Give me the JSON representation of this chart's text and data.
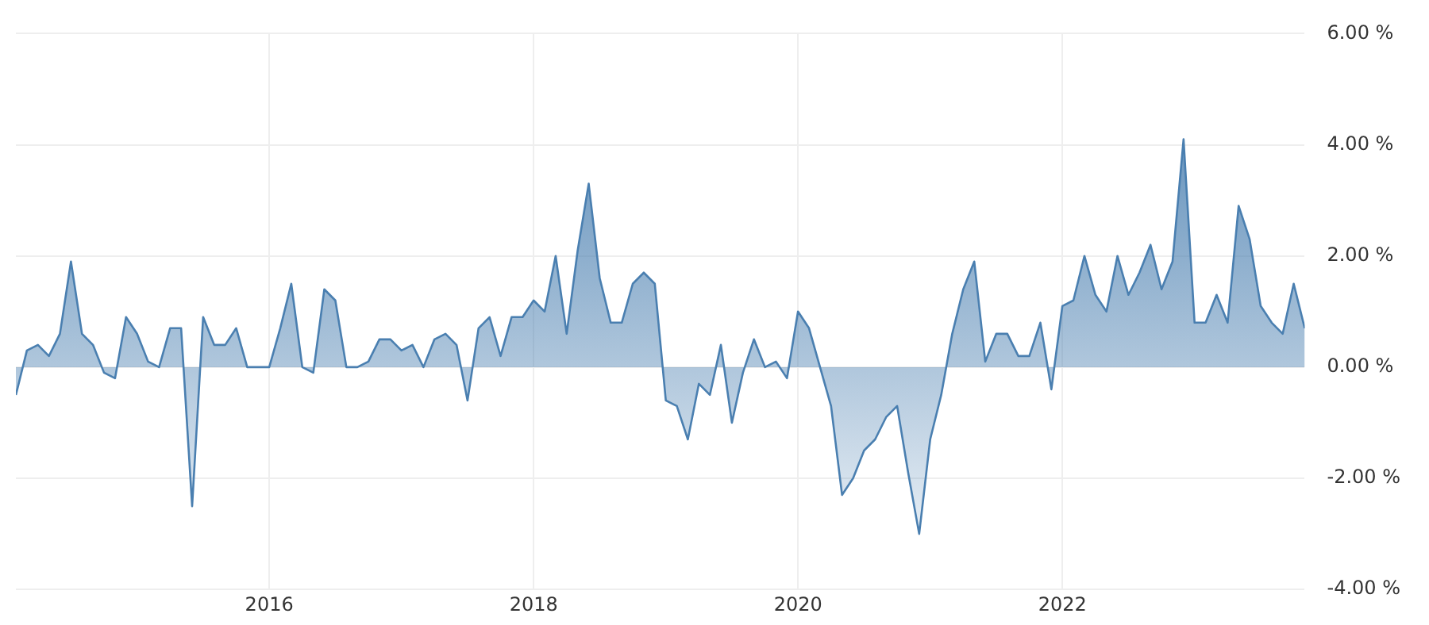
{
  "chart_data": {
    "type": "area",
    "x": [
      "2014-02",
      "2014-03",
      "2014-04",
      "2014-05",
      "2014-06",
      "2014-07",
      "2014-08",
      "2014-09",
      "2014-10",
      "2014-11",
      "2014-12",
      "2015-01",
      "2015-02",
      "2015-03",
      "2015-04",
      "2015-05",
      "2015-06",
      "2015-07",
      "2015-08",
      "2015-09",
      "2015-10",
      "2015-11",
      "2015-12",
      "2016-01",
      "2016-02",
      "2016-03",
      "2016-04",
      "2016-05",
      "2016-06",
      "2016-07",
      "2016-08",
      "2016-09",
      "2016-10",
      "2016-11",
      "2016-12",
      "2017-01",
      "2017-02",
      "2017-03",
      "2017-04",
      "2017-05",
      "2017-06",
      "2017-07",
      "2017-08",
      "2017-09",
      "2017-10",
      "2017-11",
      "2017-12",
      "2018-01",
      "2018-02",
      "2018-03",
      "2018-04",
      "2018-05",
      "2018-06",
      "2018-07",
      "2018-08",
      "2018-09",
      "2018-10",
      "2018-11",
      "2018-12",
      "2019-01",
      "2019-02",
      "2019-03",
      "2019-04",
      "2019-05",
      "2019-06",
      "2019-07",
      "2019-08",
      "2019-09",
      "2019-10",
      "2019-11",
      "2019-12",
      "2020-01",
      "2020-02",
      "2020-03",
      "2020-04",
      "2020-05",
      "2020-06",
      "2020-07",
      "2020-08",
      "2020-09",
      "2020-10",
      "2020-11",
      "2020-12",
      "2021-01",
      "2021-02",
      "2021-03",
      "2021-04",
      "2021-05",
      "2021-06",
      "2021-07",
      "2021-08",
      "2021-09",
      "2021-10",
      "2021-11",
      "2021-12",
      "2022-01",
      "2022-02",
      "2022-03",
      "2022-04",
      "2022-05",
      "2022-06",
      "2022-07",
      "2022-08",
      "2022-09",
      "2022-10",
      "2022-11",
      "2022-12",
      "2023-01",
      "2023-02",
      "2023-03",
      "2023-04",
      "2023-05",
      "2023-06",
      "2023-07",
      "2023-08",
      "2023-09",
      "2023-10",
      "2023-11"
    ],
    "series": [
      {
        "color": "#4a7fb0",
        "values": [
          -0.5,
          0.3,
          0.4,
          0.2,
          0.6,
          1.9,
          0.6,
          0.4,
          -0.1,
          -0.2,
          0.9,
          0.6,
          0.1,
          0.0,
          0.7,
          0.7,
          -2.5,
          0.9,
          0.4,
          0.4,
          0.7,
          0.0,
          0.0,
          0.0,
          0.7,
          1.5,
          0.0,
          -0.1,
          1.4,
          1.2,
          0.0,
          0.0,
          0.1,
          0.5,
          0.5,
          0.3,
          0.4,
          0.0,
          0.5,
          0.6,
          0.4,
          -0.6,
          0.7,
          0.9,
          0.2,
          0.9,
          0.9,
          1.2,
          1.0,
          2.0,
          0.6,
          2.1,
          3.3,
          1.6,
          0.8,
          0.8,
          1.5,
          1.7,
          1.5,
          -0.6,
          -0.7,
          -1.3,
          -0.3,
          -0.5,
          0.4,
          -1.0,
          -0.1,
          0.5,
          0.0,
          0.1,
          -0.2,
          1.0,
          0.7,
          0.0,
          -0.7,
          -2.3,
          -2.0,
          -1.5,
          -1.3,
          -0.9,
          -0.7,
          -1.9,
          -3.0,
          -1.3,
          -0.5,
          0.6,
          1.4,
          1.9,
          0.1,
          0.6,
          0.6,
          0.2,
          0.2,
          0.8,
          -0.4,
          1.1,
          1.2,
          2.0,
          1.3,
          1.0,
          2.0,
          1.3,
          1.7,
          2.2,
          1.4,
          1.9,
          4.1,
          0.8,
          0.8,
          1.3,
          0.8,
          2.9,
          2.3,
          1.1,
          0.8,
          0.6,
          1.5,
          0.7
        ]
      }
    ],
    "xlim": [
      "2014-02",
      "2023-11"
    ],
    "xticks": [
      "2016",
      "2018",
      "2020",
      "2022"
    ],
    "ylim": [
      -4,
      6
    ],
    "yticks": [
      {
        "value": -4,
        "label": "-4.00 %"
      },
      {
        "value": -2,
        "label": "-2.00 %"
      },
      {
        "value": 0,
        "label": "0.00 %"
      },
      {
        "value": 2,
        "label": "2.00 %"
      },
      {
        "value": 4,
        "label": "4.00 %"
      },
      {
        "value": 6,
        "label": "6.00 %"
      }
    ],
    "grid": true,
    "line_style": "solid",
    "marker": "none"
  }
}
